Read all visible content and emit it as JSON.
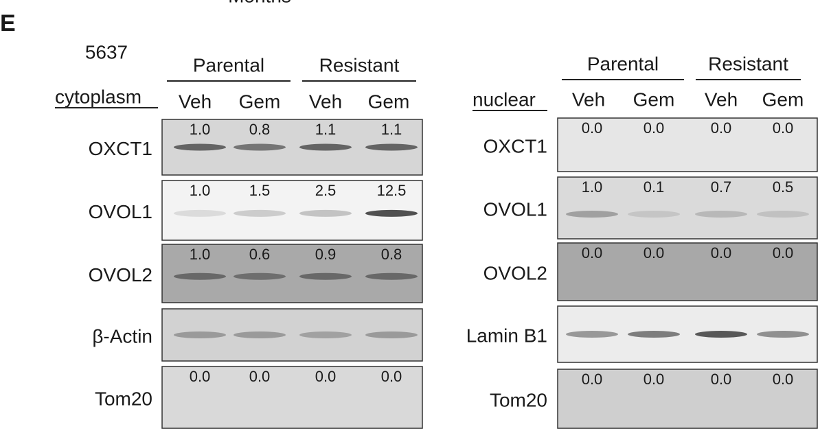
{
  "header": {
    "cut_off_text": "Months",
    "panel_label": "E",
    "cell_line": "5637"
  },
  "panels": [
    {
      "fraction": "cytoplasm",
      "groups": [
        "Parental",
        "Resistant"
      ],
      "lanes": [
        "Veh",
        "Gem",
        "Veh",
        "Gem"
      ],
      "blots": [
        {
          "label": "OXCT1",
          "values": [
            "1.0",
            "0.8",
            "1.1",
            "1.1"
          ]
        },
        {
          "label": "OVOL1",
          "values": [
            "1.0",
            "1.5",
            "2.5",
            "12.5"
          ]
        },
        {
          "label": "OVOL2",
          "values": [
            "1.0",
            "0.6",
            "0.9",
            "0.8"
          ]
        },
        {
          "label": "β-Actin"
        },
        {
          "label": "Tom20",
          "values": [
            "0.0",
            "0.0",
            "0.0",
            "0.0"
          ]
        }
      ]
    },
    {
      "fraction": "nuclear",
      "groups": [
        "Parental",
        "Resistant"
      ],
      "lanes": [
        "Veh",
        "Gem",
        "Veh",
        "Gem"
      ],
      "blots": [
        {
          "label": "OXCT1",
          "values": [
            "0.0",
            "0.0",
            "0.0",
            "0.0"
          ]
        },
        {
          "label": "OVOL1",
          "values": [
            "1.0",
            "0.1",
            "0.7",
            "0.5"
          ]
        },
        {
          "label": "OVOL2",
          "values": [
            "0.0",
            "0.0",
            "0.0",
            "0.0"
          ]
        },
        {
          "label": "Lamin B1"
        },
        {
          "label": "Tom20",
          "values": [
            "0.0",
            "0.0",
            "0.0",
            "0.0"
          ]
        }
      ]
    }
  ]
}
